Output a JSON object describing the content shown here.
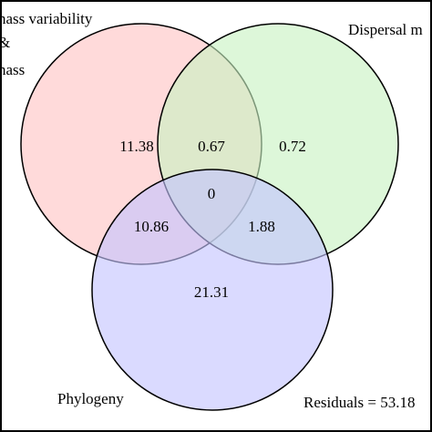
{
  "colors": {
    "set_a": "#ffc4c4",
    "set_b": "#c8f2c2",
    "set_c": "#c4c4ff",
    "outline": "#000000",
    "background": "#ffffff"
  },
  "sets": {
    "a": {
      "label_lines": [
        "nass variability",
        "&",
        "nass"
      ]
    },
    "b": {
      "label_lines": [
        "Dispersal m"
      ]
    },
    "c": {
      "label_lines": [
        "Phylogeny"
      ]
    }
  },
  "regions": {
    "a_only": "11.38",
    "ab": "0.67",
    "b_only": "0.72",
    "abc": "0",
    "ac": "10.86",
    "bc": "1.88",
    "c_only": "21.31"
  },
  "residuals": "Residuals = 53.18"
}
